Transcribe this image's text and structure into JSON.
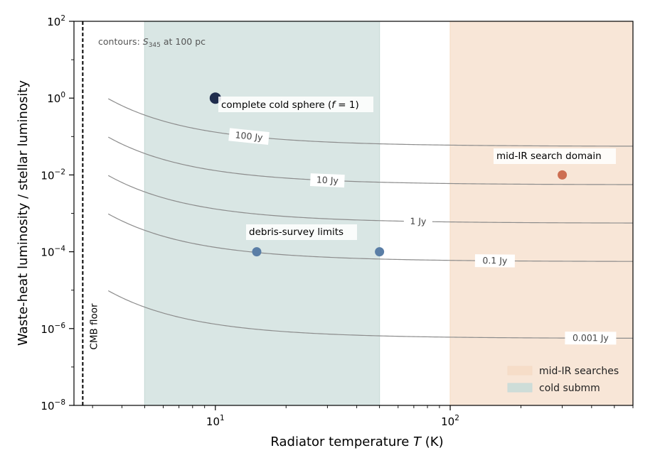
{
  "chart_data": {
    "type": "scatter",
    "xlabel_prefix": "Radiator temperature ",
    "xlabel_var": "T",
    "xlabel_suffix": " (K)",
    "ylabel": "Waste-heat luminosity / stellar luminosity",
    "x_scale": "log",
    "y_scale": "log",
    "xlim": [
      2.5,
      600
    ],
    "ylim": [
      1e-08,
      100
    ],
    "grid": false,
    "x_major_ticks": [
      {
        "value": 10,
        "base": "10",
        "exp": "1"
      },
      {
        "value": 100,
        "base": "10",
        "exp": "2"
      }
    ],
    "y_major_ticks": [
      {
        "value": 1e-08,
        "base": "10",
        "exp": "−8"
      },
      {
        "value": 1e-06,
        "base": "10",
        "exp": "−6"
      },
      {
        "value": 0.0001,
        "base": "10",
        "exp": "−4"
      },
      {
        "value": 0.01,
        "base": "10",
        "exp": "−2"
      },
      {
        "value": 1,
        "base": "10",
        "exp": "0"
      },
      {
        "value": 100,
        "base": "10",
        "exp": "2"
      }
    ],
    "shaded_regions": [
      {
        "name": "cold submm",
        "x_range": [
          5,
          50
        ],
        "color": "#c9dbd8"
      },
      {
        "name": "mid-IR searches",
        "x_range": [
          100,
          600
        ],
        "color": "#f5dcc6"
      }
    ],
    "vertical_line": {
      "x": 2.725,
      "label": "CMB floor"
    },
    "contour_note": {
      "prefix": "contours: ",
      "var": "S",
      "sub": "345",
      "suffix": " at 100 pc"
    },
    "contours": [
      {
        "label": "100 Jy",
        "label_at": 13.9,
        "min_value": 0.13
      },
      {
        "label": "10 Jy",
        "label_at": 30.0,
        "min_value": 0.013
      },
      {
        "label": "1 Jy",
        "label_at": 73.0,
        "min_value": 0.0013
      },
      {
        "label": "0.1 Jy",
        "label_at": 155.0,
        "min_value": 0.00013
      },
      {
        "label": "0.001 Jy",
        "label_at": 396.0,
        "min_value": 1.3e-06
      }
    ],
    "points": [
      {
        "name": "complete cold sphere",
        "x": 10,
        "y": 1,
        "color": "#1f2d4d",
        "size": "large"
      },
      {
        "name": "debris-survey limits",
        "x": 15,
        "y": 0.0001,
        "color": "#5a7ea6",
        "size": "medium"
      },
      {
        "name": "debris-survey limits",
        "x": 50,
        "y": 0.0001,
        "color": "#5a7ea6",
        "size": "medium"
      },
      {
        "name": "mid-IR search domain",
        "x": 300,
        "y": 0.01,
        "color": "#cd6e51",
        "size": "medium"
      }
    ],
    "annotations": {
      "sphere_prefix": "complete cold sphere (",
      "sphere_var": "f",
      "sphere_suffix": " = 1)",
      "debris": "debris-survey limits",
      "midir": "mid-IR search domain"
    },
    "legend": {
      "placement": "bottom-right",
      "items": [
        {
          "label": "mid-IR searches",
          "color": "#f5dcc6"
        },
        {
          "label": "cold submm",
          "color": "#c9dbd8"
        }
      ]
    }
  }
}
